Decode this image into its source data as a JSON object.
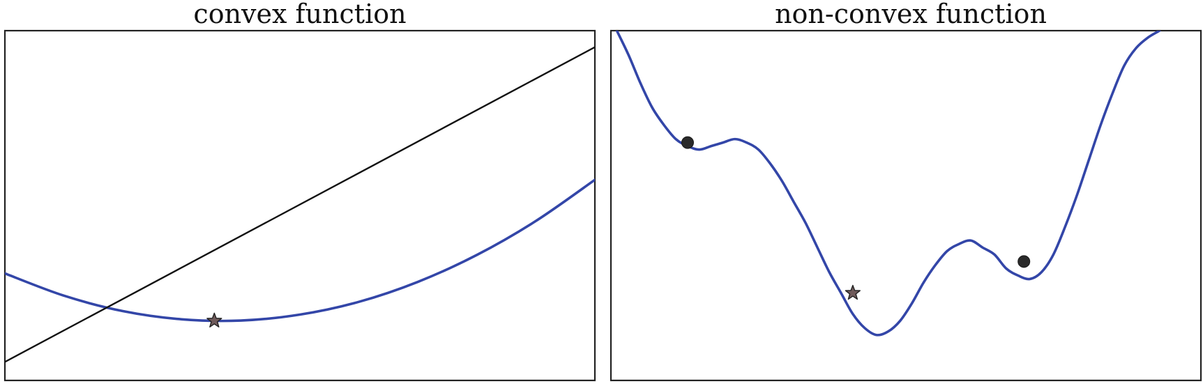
{
  "chart_data": [
    {
      "type": "line",
      "title": "convex function",
      "xlabel": "",
      "ylabel": "",
      "grid": false,
      "xlim": [
        -1,
        1
      ],
      "ylim": [
        -0.15,
        1.55
      ],
      "series": [
        {
          "role": "curve",
          "color": "#3346a8",
          "x": [
            -1,
            -0.8,
            -0.6,
            -0.4,
            -0.2,
            0,
            0.2,
            0.4,
            0.6,
            0.8,
            1
          ],
          "y": [
            0.37,
            0.262,
            0.187,
            0.147,
            0.141,
            0.17,
            0.232,
            0.329,
            0.46,
            0.625,
            0.825
          ]
        },
        {
          "role": "secant-line",
          "color": "#111111",
          "x": [
            -1,
            1
          ],
          "y": [
            -0.06,
            1.47
          ]
        }
      ],
      "markers": [
        {
          "shape": "star",
          "x": -0.29,
          "y": 0.14,
          "color": "#6f5a5a"
        }
      ]
    },
    {
      "type": "line",
      "title": "non-convex function",
      "xlabel": "",
      "ylabel": "",
      "grid": false,
      "xlim": [
        0,
        1
      ],
      "ylim": [
        0,
        1
      ],
      "series": [
        {
          "role": "curve",
          "color": "#3346a8",
          "x": [
            0.01,
            0.03,
            0.05,
            0.07,
            0.09,
            0.11,
            0.13,
            0.15,
            0.17,
            0.19,
            0.21,
            0.23,
            0.25,
            0.27,
            0.29,
            0.31,
            0.33,
            0.35,
            0.37,
            0.39,
            0.41,
            0.43,
            0.45,
            0.47,
            0.49,
            0.51,
            0.53,
            0.55,
            0.57,
            0.59,
            0.61,
            0.63,
            0.65,
            0.67,
            0.69,
            0.71,
            0.73,
            0.75,
            0.77,
            0.79,
            0.81,
            0.83,
            0.85,
            0.87,
            0.89,
            0.91,
            0.93
          ],
          "y": [
            1.0,
            0.93,
            0.85,
            0.78,
            0.73,
            0.69,
            0.67,
            0.66,
            0.67,
            0.68,
            0.69,
            0.68,
            0.66,
            0.62,
            0.57,
            0.51,
            0.45,
            0.38,
            0.31,
            0.25,
            0.19,
            0.15,
            0.13,
            0.14,
            0.17,
            0.22,
            0.28,
            0.33,
            0.37,
            0.39,
            0.4,
            0.38,
            0.36,
            0.32,
            0.3,
            0.29,
            0.31,
            0.36,
            0.44,
            0.53,
            0.63,
            0.73,
            0.82,
            0.9,
            0.95,
            0.98,
            1.0
          ]
        }
      ],
      "markers": [
        {
          "shape": "dot",
          "x": 0.13,
          "y": 0.68,
          "color": "#2a2a2a"
        },
        {
          "shape": "star",
          "x": 0.41,
          "y": 0.25,
          "color": "#6f5a5a"
        },
        {
          "shape": "dot",
          "x": 0.7,
          "y": 0.34,
          "color": "#2a2a2a"
        }
      ]
    }
  ]
}
